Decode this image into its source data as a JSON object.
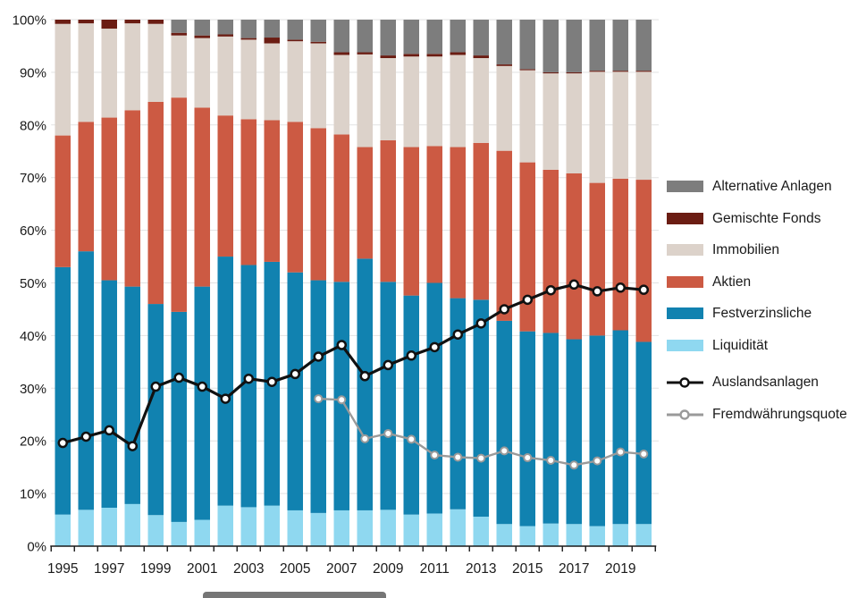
{
  "chart_data": {
    "type": "bar",
    "stacked": true,
    "grid": true,
    "legend_position": "right",
    "ylim": [
      0,
      100
    ],
    "y_ticks": [
      "0%",
      "10%",
      "20%",
      "30%",
      "40%",
      "50%",
      "60%",
      "70%",
      "80%",
      "90%",
      "100%"
    ],
    "x": [
      1995,
      1996,
      1997,
      1998,
      1999,
      2000,
      2001,
      2002,
      2003,
      2004,
      2005,
      2006,
      2007,
      2008,
      2009,
      2010,
      2011,
      2012,
      2013,
      2014,
      2015,
      2016,
      2017,
      2018,
      2019,
      2020
    ],
    "x_tick_labels": [
      "1995",
      "1997",
      "1999",
      "2001",
      "2003",
      "2005",
      "2007",
      "2009",
      "2011",
      "2013",
      "2015",
      "2017",
      "2019"
    ],
    "series": [
      {
        "name": "Liquidität",
        "type": "bar",
        "color": "#8fd8f0",
        "values": [
          6.0,
          6.9,
          7.3,
          8.0,
          5.9,
          4.6,
          5.0,
          7.7,
          7.4,
          7.7,
          6.8,
          6.3,
          6.8,
          6.8,
          6.9,
          6.0,
          6.2,
          7.0,
          5.6,
          4.2,
          3.8,
          4.3,
          4.2,
          3.8,
          4.2,
          4.2
        ]
      },
      {
        "name": "Festverzinsliche",
        "type": "bar",
        "color": "#1182b0",
        "values": [
          47.0,
          49.1,
          43.2,
          41.3,
          40.1,
          39.9,
          44.3,
          47.3,
          46.0,
          46.3,
          45.2,
          44.2,
          43.4,
          47.8,
          43.3,
          41.6,
          43.8,
          40.1,
          41.2,
          38.6,
          37.0,
          36.2,
          35.1,
          36.2,
          36.8,
          34.6
        ]
      },
      {
        "name": "Aktien",
        "type": "bar",
        "color": "#cc5a43",
        "values": [
          25.0,
          24.6,
          30.9,
          33.5,
          38.4,
          40.7,
          34.0,
          26.8,
          27.7,
          26.9,
          28.6,
          28.9,
          28.0,
          21.2,
          26.9,
          28.2,
          26.0,
          28.7,
          29.8,
          32.3,
          32.1,
          31.0,
          31.5,
          29.0,
          28.8,
          30.8
        ]
      },
      {
        "name": "Immobilien",
        "type": "bar",
        "color": "#dcd2ca",
        "values": [
          21.2,
          18.7,
          16.9,
          16.5,
          14.8,
          11.8,
          13.2,
          15.0,
          15.1,
          14.6,
          15.3,
          16.1,
          15.1,
          17.6,
          15.6,
          17.2,
          17.0,
          17.5,
          16.1,
          16.1,
          17.5,
          18.3,
          19.0,
          21.1,
          20.3,
          20.5
        ]
      },
      {
        "name": "Gemischte Fonds",
        "type": "bar",
        "color": "#6b1d13",
        "values": [
          0.8,
          0.7,
          1.7,
          0.7,
          0.8,
          0.5,
          0.5,
          0.4,
          0.3,
          1.1,
          0.3,
          0.3,
          0.5,
          0.4,
          0.5,
          0.5,
          0.5,
          0.5,
          0.5,
          0.3,
          0.2,
          0.2,
          0.2,
          0.2,
          0.2,
          0.2
        ]
      },
      {
        "name": "Alternative Anlagen",
        "type": "bar",
        "color": "#7d7d7d",
        "values": [
          0.0,
          0.0,
          0.0,
          0.0,
          0.0,
          2.5,
          3.0,
          2.8,
          3.5,
          3.4,
          3.8,
          4.2,
          6.2,
          6.2,
          6.8,
          6.5,
          6.5,
          6.2,
          6.8,
          8.5,
          9.4,
          10.0,
          10.0,
          9.7,
          9.7,
          9.7
        ]
      },
      {
        "name": "Auslandsanlagen",
        "type": "line",
        "color": "#111111",
        "marker": "circle",
        "values": [
          19.6,
          20.8,
          22.0,
          19.0,
          30.3,
          32.0,
          30.3,
          28.0,
          31.8,
          31.2,
          32.7,
          36.0,
          38.2,
          32.3,
          34.4,
          36.2,
          37.8,
          40.2,
          42.3,
          45.0,
          46.8,
          48.6,
          49.7,
          48.4,
          49.1,
          48.7
        ]
      },
      {
        "name": "Fremdwährungsquote",
        "type": "line",
        "color": "#9a9a9a",
        "marker": "circle",
        "values": [
          null,
          null,
          null,
          null,
          null,
          null,
          null,
          null,
          null,
          null,
          null,
          28.0,
          27.8,
          20.4,
          21.4,
          20.3,
          17.3,
          16.9,
          16.7,
          18.1,
          16.8,
          16.3,
          15.4,
          16.2,
          17.9,
          17.5
        ]
      }
    ]
  },
  "legend": {
    "items": [
      {
        "label": "Alternative Anlagen",
        "swatch": "rect",
        "color": "#7d7d7d"
      },
      {
        "label": "Gemischte Fonds",
        "swatch": "rect",
        "color": "#6b1d13"
      },
      {
        "label": "Immobilien",
        "swatch": "rect",
        "color": "#dcd2ca"
      },
      {
        "label": "Aktien",
        "swatch": "rect",
        "color": "#cc5a43"
      },
      {
        "label": "Festverzinsliche",
        "swatch": "rect",
        "color": "#1182b0"
      },
      {
        "label": "Liquidität",
        "swatch": "rect",
        "color": "#8fd8f0"
      },
      {
        "label": "Auslandsanlagen",
        "swatch": "line",
        "color": "#111111"
      },
      {
        "label": "Fremdwährungsquote",
        "swatch": "line",
        "color": "#9a9a9a"
      }
    ]
  },
  "style": {
    "grid_color": "#e2e2e2",
    "axis_color": "#1a1a1a",
    "tick_label_color": "#1a1a1a"
  }
}
